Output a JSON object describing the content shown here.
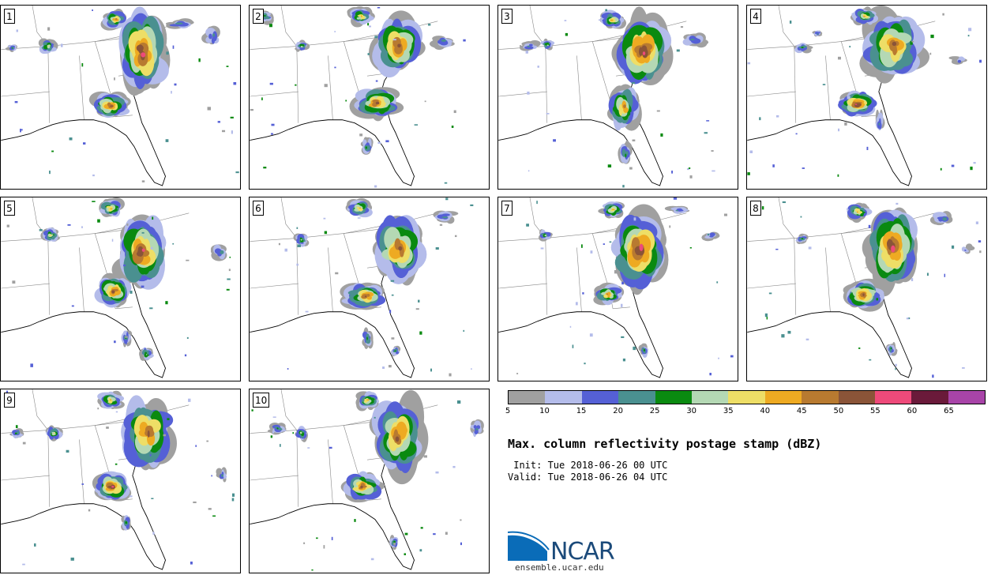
{
  "panels": [
    {
      "label": "1"
    },
    {
      "label": "2"
    },
    {
      "label": "3"
    },
    {
      "label": "4"
    },
    {
      "label": "5"
    },
    {
      "label": "6"
    },
    {
      "label": "7"
    },
    {
      "label": "8"
    },
    {
      "label": "9"
    },
    {
      "label": "10"
    }
  ],
  "colorbar": {
    "colors": [
      "#a0a0a0",
      "#b4bcea",
      "#5560d6",
      "#4a9090",
      "#0a8a10",
      "#b4d8b4",
      "#eede66",
      "#eeaa22",
      "#b87a30",
      "#8a5438",
      "#ee4a7a",
      "#6a1a3a",
      "#a844a8"
    ],
    "ticks": [
      "5",
      "10",
      "15",
      "20",
      "25",
      "30",
      "35",
      "40",
      "45",
      "50",
      "55",
      "60",
      "65"
    ]
  },
  "title": "Max. column reflectivity postage stamp (dBZ)",
  "init_line": " Init: Tue 2018-06-26 00 UTC",
  "valid_line": "Valid: Tue 2018-06-26 04 UTC",
  "logo": {
    "name": "NCAR",
    "url": "ensemble.ucar.edu",
    "primary_color": "#0a6cb8"
  }
}
